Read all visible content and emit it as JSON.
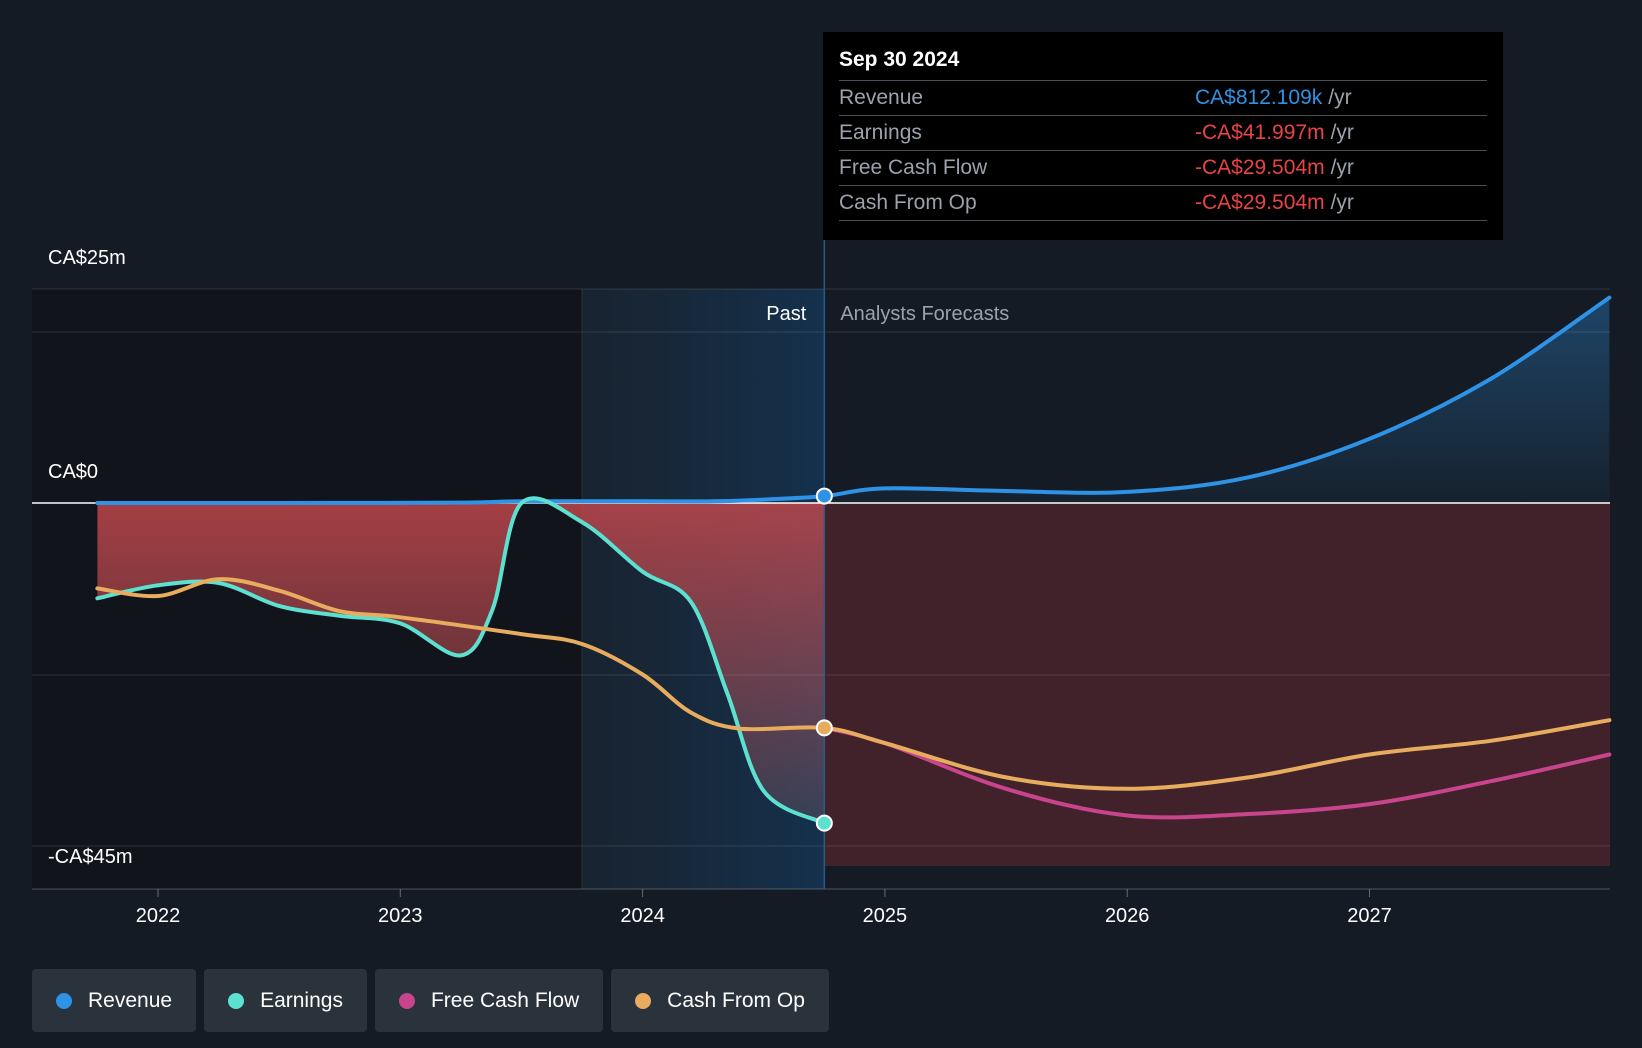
{
  "tooltip": {
    "date": "Sep 30 2024",
    "rows": [
      {
        "name": "Revenue",
        "value": "CA$812.109k",
        "unit": "/yr",
        "color": "#2e93e6"
      },
      {
        "name": "Earnings",
        "value": "-CA$41.997m",
        "unit": "/yr",
        "color": "#e84444"
      },
      {
        "name": "Free Cash Flow",
        "value": "-CA$29.504m",
        "unit": "/yr",
        "color": "#e84444"
      },
      {
        "name": "Cash From Op",
        "value": "-CA$29.504m",
        "unit": "/yr",
        "color": "#e84444"
      }
    ]
  },
  "legend": [
    {
      "label": "Revenue",
      "color": "#2e93e6"
    },
    {
      "label": "Earnings",
      "color": "#5ce1d1"
    },
    {
      "label": "Free Cash Flow",
      "color": "#c8448c"
    },
    {
      "label": "Cash From Op",
      "color": "#e8ac5e"
    }
  ],
  "chart_data": {
    "type": "line",
    "title": "",
    "units": "CA$ millions",
    "y_axis_labels": [
      "CA$25m",
      "CA$0",
      "-CA$45m"
    ],
    "ylim": [
      -45,
      25
    ],
    "x_tick_labels": [
      "2022",
      "2023",
      "2024",
      "2025",
      "2026",
      "2027"
    ],
    "xlim": [
      2021.5,
      2027.99
    ],
    "past_label": "Past",
    "forecast_label": "Analysts Forecasts",
    "divider_date": 2024.75,
    "past_highlight_start": 2023.75,
    "series": [
      {
        "name": "Revenue",
        "color": "#2e93e6",
        "points": [
          [
            2021.75,
            0.0
          ],
          [
            2022.5,
            0.0
          ],
          [
            2023.25,
            0.05
          ],
          [
            2023.5,
            0.2
          ],
          [
            2024.0,
            0.2
          ],
          [
            2024.3,
            0.2
          ],
          [
            2024.5,
            0.4
          ],
          [
            2024.75,
            0.81
          ],
          [
            2025.0,
            1.7
          ],
          [
            2025.5,
            1.4
          ],
          [
            2026.0,
            1.3
          ],
          [
            2026.5,
            3.0
          ],
          [
            2027.0,
            7.5
          ],
          [
            2027.5,
            14.5
          ],
          [
            2027.99,
            24.0
          ]
        ]
      },
      {
        "name": "Earnings",
        "color": "#5ce1d1",
        "points": [
          [
            2021.75,
            -12.5
          ],
          [
            2022.0,
            -10.8
          ],
          [
            2022.25,
            -10.5
          ],
          [
            2022.5,
            -13.5
          ],
          [
            2022.75,
            -14.8
          ],
          [
            2023.0,
            -15.8
          ],
          [
            2023.25,
            -20.0
          ],
          [
            2023.38,
            -14.0
          ],
          [
            2023.5,
            0.0
          ],
          [
            2023.75,
            -2.5
          ],
          [
            2024.0,
            -9.0
          ],
          [
            2024.2,
            -13.0
          ],
          [
            2024.35,
            -25.0
          ],
          [
            2024.5,
            -37.8
          ],
          [
            2024.75,
            -41.997
          ]
        ]
      },
      {
        "name": "Free Cash Flow",
        "color": "#c8448c",
        "points": [
          [
            2024.75,
            -29.504
          ],
          [
            2025.0,
            -31.5
          ],
          [
            2025.5,
            -37.5
          ],
          [
            2026.0,
            -41.0
          ],
          [
            2026.5,
            -40.8
          ],
          [
            2027.0,
            -39.5
          ],
          [
            2027.5,
            -36.5
          ],
          [
            2027.99,
            -33.0
          ]
        ]
      },
      {
        "name": "Cash From Op",
        "color": "#e8ac5e",
        "points": [
          [
            2021.75,
            -11.2
          ],
          [
            2022.0,
            -12.2
          ],
          [
            2022.25,
            -10.0
          ],
          [
            2022.5,
            -11.5
          ],
          [
            2022.75,
            -14.2
          ],
          [
            2023.0,
            -15.0
          ],
          [
            2023.5,
            -17.2
          ],
          [
            2023.75,
            -18.5
          ],
          [
            2024.0,
            -22.5
          ],
          [
            2024.2,
            -27.5
          ],
          [
            2024.4,
            -29.6
          ],
          [
            2024.75,
            -29.504
          ],
          [
            2025.0,
            -31.5
          ],
          [
            2025.5,
            -36.0
          ],
          [
            2026.0,
            -37.5
          ],
          [
            2026.5,
            -36.0
          ],
          [
            2027.0,
            -33.0
          ],
          [
            2027.5,
            -31.2
          ],
          [
            2027.99,
            -28.5
          ]
        ]
      }
    ],
    "highlight_points": [
      {
        "series": "Revenue",
        "x": 2024.75,
        "y": 0.81
      },
      {
        "series": "Cash From Op",
        "x": 2024.75,
        "y": -29.504
      },
      {
        "series": "Earnings",
        "x": 2024.75,
        "y": -41.997
      }
    ]
  }
}
